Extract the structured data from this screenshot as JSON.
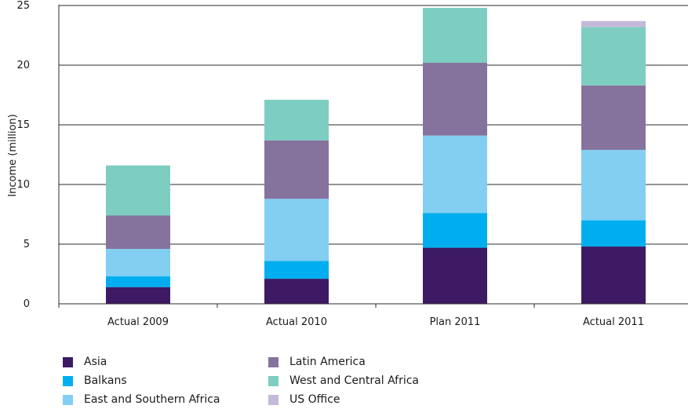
{
  "chart_data": {
    "type": "bar",
    "stacked": true,
    "categories": [
      "Actual 2009",
      "Actual 2010",
      "Plan 2011",
      "Actual 2011"
    ],
    "ylabel": "Income (million)",
    "ylim": [
      0,
      25
    ],
    "yticks": [
      0,
      5,
      10,
      15,
      20,
      25
    ],
    "grid": true,
    "legend_position": "bottom-left",
    "series": [
      {
        "name": "Asia",
        "color": "#3d1a63",
        "values": [
          1.4,
          2.1,
          4.7,
          4.8
        ]
      },
      {
        "name": "Balkans",
        "color": "#00aeef",
        "values": [
          0.9,
          1.5,
          2.9,
          2.2
        ]
      },
      {
        "name": "East and Southern Africa",
        "color": "#82cff2",
        "values": [
          2.3,
          5.2,
          6.5,
          5.9
        ]
      },
      {
        "name": "Latin America",
        "color": "#85739e",
        "values": [
          2.8,
          4.9,
          6.1,
          5.4
        ]
      },
      {
        "name": "West and Central Africa",
        "color": "#7ecdc1",
        "values": [
          4.2,
          3.4,
          4.6,
          4.9
        ]
      },
      {
        "name": "US Office",
        "color": "#c4b9d8",
        "values": [
          0,
          0,
          0,
          0.5
        ]
      }
    ]
  }
}
